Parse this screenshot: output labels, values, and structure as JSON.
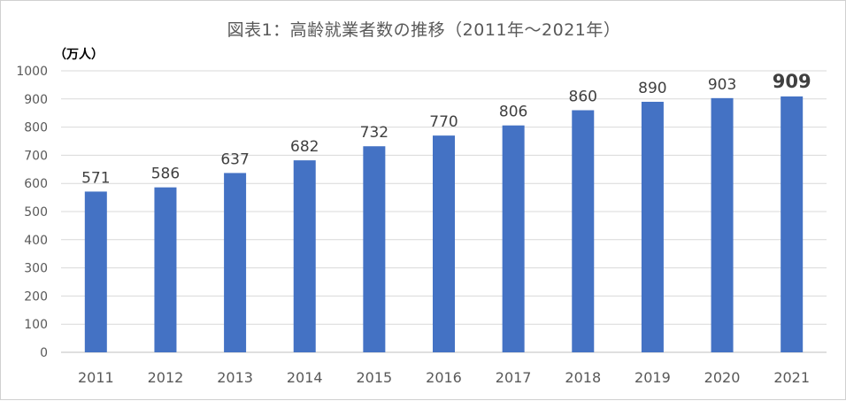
{
  "chart_data": {
    "type": "bar",
    "title": "図表1：高齢就業者数の推移（2011年～2021年）",
    "unit_label": "（万人）",
    "xlabel": "",
    "ylabel": "",
    "categories": [
      "2011",
      "2012",
      "2013",
      "2014",
      "2015",
      "2016",
      "2017",
      "2018",
      "2019",
      "2020",
      "2021"
    ],
    "values": [
      571,
      586,
      637,
      682,
      732,
      770,
      806,
      860,
      890,
      903,
      909
    ],
    "ylim": [
      0,
      1000
    ],
    "yticks": [
      0,
      100,
      200,
      300,
      400,
      500,
      600,
      700,
      800,
      900,
      1000
    ],
    "grid": true,
    "legend": "none",
    "bar_color": "#4472c4",
    "highlight_index": 10,
    "highlight_color": "#ff0000"
  }
}
